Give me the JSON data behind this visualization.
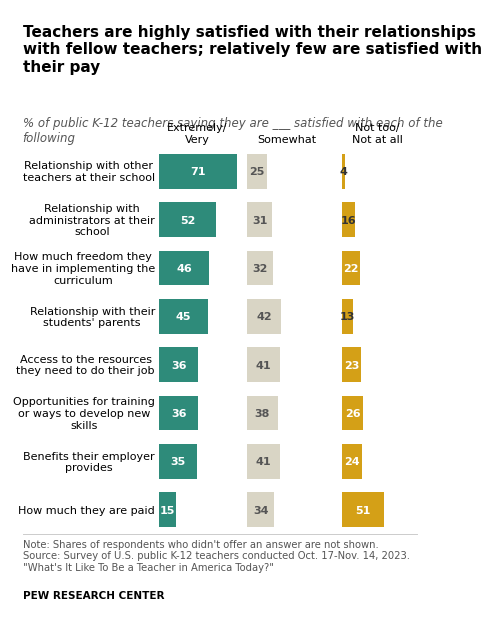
{
  "title": "Teachers are highly satisfied with their relationships\nwith fellow teachers; relatively few are satisfied with\ntheir pay",
  "subtitle": "% of public K-12 teachers saying they are ___ satisfied with each of the\nfollowing",
  "categories": [
    "Relationship with other\nteachers at their school",
    "Relationship with\nadministrators at their\nschool",
    "How much freedom they\nhave in implementing the\ncurriculum",
    "Relationship with their\nstudents' parents",
    "Access to the resources\nthey need to do their job",
    "Opportunities for training\nor ways to develop new\nskills",
    "Benefits their employer\nprovides",
    "How much they are paid"
  ],
  "extremely_very": [
    71,
    52,
    46,
    45,
    36,
    36,
    35,
    15
  ],
  "somewhat": [
    25,
    31,
    32,
    42,
    41,
    38,
    41,
    34
  ],
  "not_too_not_at_all": [
    4,
    16,
    22,
    13,
    23,
    26,
    24,
    51
  ],
  "col_headers": [
    "Extremely/\nVery",
    "Somewhat",
    "Not too/\nNot at all"
  ],
  "color_extremely": "#2e8b7a",
  "color_somewhat": "#d9d5c5",
  "color_not_too": "#d4a017",
  "note": "Note: Shares of respondents who didn't offer an answer are not shown.\nSource: Survey of U.S. public K-12 teachers conducted Oct. 17-Nov. 14, 2023.\n\"What's It Like To Be a Teacher in America Today?\"",
  "footer": "PEW RESEARCH CENTER",
  "title_fontsize": 11,
  "subtitle_fontsize": 8.5,
  "label_fontsize": 8,
  "note_fontsize": 7.2
}
